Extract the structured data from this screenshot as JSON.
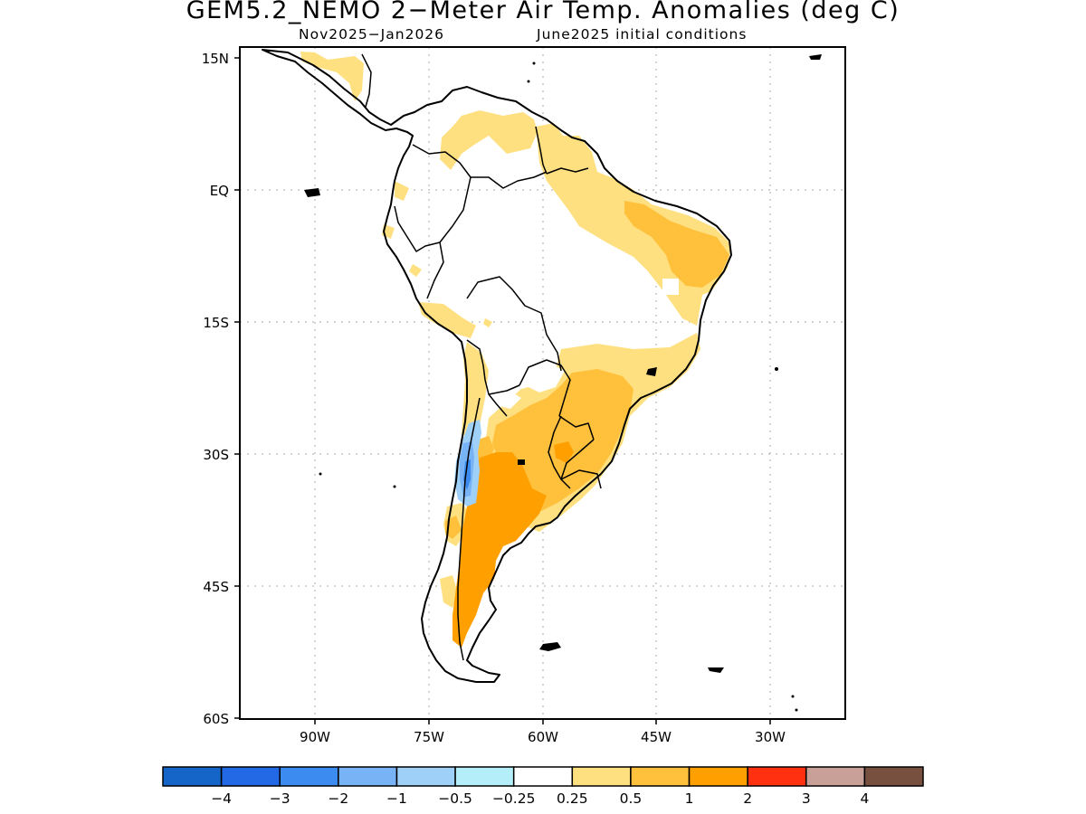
{
  "title": "GEM5.2_NEMO 2−Meter Air Temp. Anomalies (deg C)",
  "subtitle_left": "Nov2025−Jan2026",
  "subtitle_right": "June2025 initial conditions",
  "lat_ticks": [
    "15N",
    "EQ",
    "15S",
    "30S",
    "45S",
    "60S"
  ],
  "lon_ticks": [
    "90W",
    "75W",
    "60W",
    "45W",
    "30W"
  ],
  "colorbar": {
    "colors": [
      "#1565c8",
      "#2369e6",
      "#3b8bf0",
      "#78b4f5",
      "#9fd0f8",
      "#b4eef8",
      "#ffffff",
      "#ffe080",
      "#ffc03c",
      "#ffa000",
      "#ff3010",
      "#c8a098",
      "#785040"
    ],
    "labels": [
      "−4",
      "−3",
      "−2",
      "−1",
      "−0.5",
      "−0.25",
      "0.25",
      "0.5",
      "1",
      "2",
      "3",
      "4"
    ]
  },
  "legend_key": {
    "ge_025": "#ffe080",
    "ge_05": "#ffc03c",
    "ge_1": "#ffa000",
    "le_m05": "#9fd0f8",
    "le_m1": "#78b4f5",
    "le_m2": "#3b8bf0"
  }
}
